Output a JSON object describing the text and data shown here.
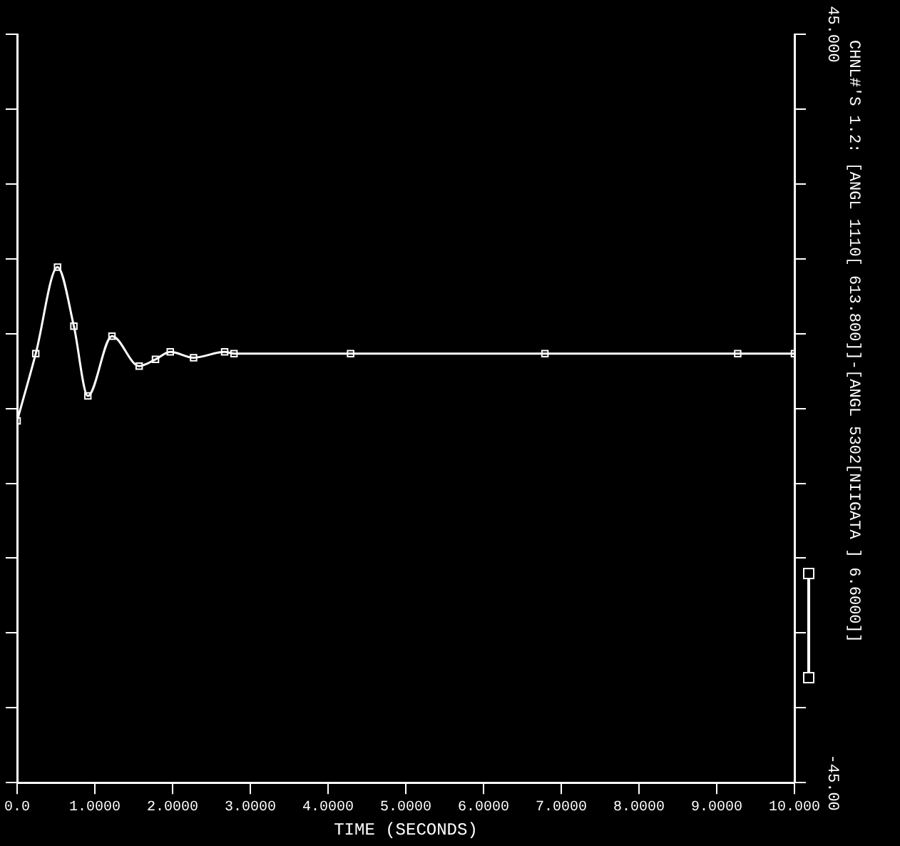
{
  "chart_data": {
    "type": "line",
    "xlabel": "TIME (SECONDS)",
    "xlim": [
      0,
      10
    ],
    "xticks": [
      {
        "value": 0,
        "label": "0.0"
      },
      {
        "value": 1,
        "label": "1.0000"
      },
      {
        "value": 2,
        "label": "2.0000"
      },
      {
        "value": 3,
        "label": "3.0000"
      },
      {
        "value": 4,
        "label": "4.0000"
      },
      {
        "value": 5,
        "label": "5.0000"
      },
      {
        "value": 6,
        "label": "6.0000"
      },
      {
        "value": 7,
        "label": "7.0000"
      },
      {
        "value": 8,
        "label": "8.0000"
      },
      {
        "value": 9,
        "label": "9.0000"
      },
      {
        "value": 10,
        "label": "10.000"
      }
    ],
    "ylim": [
      -45,
      45
    ],
    "yticks": [
      {
        "value": -45,
        "label": "-45.00"
      },
      {
        "value": -36,
        "label": null
      },
      {
        "value": -27,
        "label": null
      },
      {
        "value": -18,
        "label": null
      },
      {
        "value": -9,
        "label": null
      },
      {
        "value": 0,
        "label": null
      },
      {
        "value": 9,
        "label": null
      },
      {
        "value": 18,
        "label": null
      },
      {
        "value": 27,
        "label": null
      },
      {
        "value": 36,
        "label": null
      },
      {
        "value": 45,
        "label": "45.000"
      }
    ],
    "series": [
      {
        "name": "CHNL#'S 1.2: [ANGL 1110[ 613.800]]-[ANGL 5302[NIIGATA ] 6.6000]]",
        "color": "#ffffff",
        "x": [
          0,
          0.24,
          0.52,
          0.73,
          0.91,
          1.22,
          1.57,
          1.78,
          1.97,
          2.27,
          2.67,
          2.79,
          4.29,
          6.79,
          9.27,
          10
        ],
        "values": [
          -1.5,
          6.6,
          17.0,
          9.9,
          1.5,
          8.7,
          5.1,
          5.9,
          6.8,
          6.1,
          6.8,
          6.6,
          6.6,
          6.6,
          6.6,
          6.6
        ]
      }
    ],
    "marker": "square",
    "grid": false,
    "legend": "right"
  }
}
